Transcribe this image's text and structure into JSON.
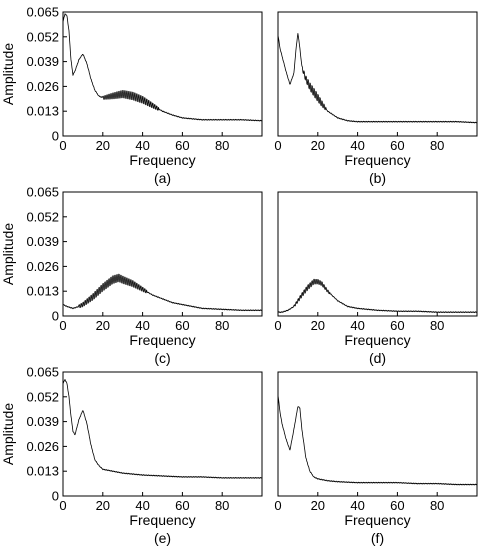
{
  "chart_data": [
    {
      "type": "line",
      "label": "(a)",
      "xlabel": "Frequency",
      "ylabel": "Amplitude",
      "xlim": [
        0,
        100
      ],
      "ylim": [
        0,
        0.065
      ],
      "xticks": [
        0,
        20,
        40,
        60,
        80
      ],
      "yticks": [
        0,
        0.013,
        0.026,
        0.039,
        0.052,
        0.065
      ],
      "xtick_labels": [
        "0",
        "20",
        "40",
        "60",
        "80"
      ],
      "ytick_labels": [
        "0",
        "0.013",
        "0.026",
        "0.039",
        "0.052",
        "0.065"
      ],
      "grid": false,
      "series": [
        {
          "x": [
            0,
            1,
            2,
            3,
            4,
            5,
            6,
            8,
            10,
            12,
            14,
            16,
            18,
            20,
            25,
            30,
            35,
            40,
            45,
            50,
            55,
            60,
            65,
            70,
            80,
            90,
            100
          ],
          "y": [
            0.06,
            0.064,
            0.063,
            0.055,
            0.04,
            0.032,
            0.034,
            0.04,
            0.043,
            0.038,
            0.03,
            0.024,
            0.021,
            0.02,
            0.021,
            0.022,
            0.021,
            0.019,
            0.016,
            0.013,
            0.011,
            0.0095,
            0.009,
            0.0085,
            0.0085,
            0.0085,
            0.008
          ],
          "oscillation": {
            "from": 20,
            "to": 48,
            "amplitude": 0.004
          }
        }
      ]
    },
    {
      "type": "line",
      "label": "(b)",
      "xlabel": "Frequency",
      "ylabel": "",
      "xlim": [
        0,
        100
      ],
      "ylim": [
        0,
        0.065
      ],
      "xticks": [
        0,
        20,
        40,
        60,
        80
      ],
      "yticks": [],
      "xtick_labels": [
        "0",
        "20",
        "40",
        "60",
        "80"
      ],
      "ytick_labels": [],
      "grid": false,
      "series": [
        {
          "x": [
            0,
            1,
            2,
            4,
            6,
            8,
            9,
            10,
            11,
            12,
            14,
            16,
            18,
            20,
            22,
            25,
            30,
            35,
            40,
            50,
            60,
            70,
            80,
            90,
            100
          ],
          "y": [
            0.053,
            0.046,
            0.042,
            0.034,
            0.027,
            0.033,
            0.045,
            0.054,
            0.046,
            0.036,
            0.03,
            0.026,
            0.023,
            0.02,
            0.017,
            0.013,
            0.0095,
            0.008,
            0.0075,
            0.0075,
            0.0075,
            0.0075,
            0.0075,
            0.0075,
            0.007
          ],
          "oscillation": {
            "from": 12,
            "to": 24,
            "amplitude": 0.004
          }
        }
      ]
    },
    {
      "type": "line",
      "label": "(c)",
      "xlabel": "Frequency",
      "ylabel": "Amplitude",
      "xlim": [
        0,
        100
      ],
      "ylim": [
        0,
        0.065
      ],
      "xticks": [
        0,
        20,
        40,
        60,
        80
      ],
      "yticks": [
        0,
        0.013,
        0.026,
        0.039,
        0.052,
        0.065
      ],
      "xtick_labels": [
        "0",
        "20",
        "40",
        "60",
        "80"
      ],
      "ytick_labels": [
        "0",
        "0.013",
        "0.026",
        "0.039",
        "0.052",
        "0.065"
      ],
      "grid": false,
      "series": [
        {
          "x": [
            0,
            2,
            5,
            8,
            10,
            15,
            20,
            25,
            28,
            30,
            35,
            40,
            45,
            50,
            55,
            60,
            65,
            70,
            80,
            90,
            100
          ],
          "y": [
            0.006,
            0.005,
            0.004,
            0.005,
            0.006,
            0.01,
            0.015,
            0.019,
            0.02,
            0.019,
            0.017,
            0.014,
            0.011,
            0.009,
            0.007,
            0.006,
            0.005,
            0.004,
            0.0035,
            0.003,
            0.003
          ],
          "oscillation": {
            "from": 8,
            "to": 42,
            "amplitude": 0.004
          }
        }
      ]
    },
    {
      "type": "line",
      "label": "(d)",
      "xlabel": "Frequency",
      "ylabel": "",
      "xlim": [
        0,
        100
      ],
      "ylim": [
        0,
        0.065
      ],
      "xticks": [
        0,
        20,
        40,
        60,
        80
      ],
      "yticks": [],
      "xtick_labels": [
        "0",
        "20",
        "40",
        "60",
        "80"
      ],
      "ytick_labels": [],
      "grid": false,
      "series": [
        {
          "x": [
            0,
            2,
            5,
            8,
            10,
            12,
            15,
            18,
            20,
            22,
            25,
            28,
            30,
            35,
            40,
            50,
            60,
            70,
            80,
            90,
            100
          ],
          "y": [
            0.002,
            0.002,
            0.003,
            0.005,
            0.008,
            0.011,
            0.015,
            0.018,
            0.018,
            0.017,
            0.013,
            0.01,
            0.008,
            0.005,
            0.004,
            0.003,
            0.0025,
            0.0025,
            0.002,
            0.002,
            0.002
          ],
          "oscillation": {
            "from": 8,
            "to": 26,
            "amplitude": 0.0025
          }
        }
      ]
    },
    {
      "type": "line",
      "label": "(e)",
      "xlabel": "Frequency",
      "ylabel": "Amplitude",
      "xlim": [
        0,
        100
      ],
      "ylim": [
        0,
        0.065
      ],
      "xticks": [
        0,
        20,
        40,
        60,
        80
      ],
      "yticks": [
        0,
        0.013,
        0.026,
        0.039,
        0.052,
        0.065
      ],
      "xtick_labels": [
        "0",
        "20",
        "40",
        "60",
        "80"
      ],
      "ytick_labels": [
        "0",
        "0.013",
        "0.026",
        "0.039",
        "0.052",
        "0.065"
      ],
      "grid": false,
      "series": [
        {
          "x": [
            0,
            1,
            2,
            3,
            4,
            5,
            6,
            8,
            10,
            12,
            14,
            16,
            18,
            20,
            25,
            30,
            40,
            50,
            60,
            70,
            80,
            90,
            100
          ],
          "y": [
            0.059,
            0.061,
            0.059,
            0.052,
            0.042,
            0.034,
            0.032,
            0.04,
            0.045,
            0.038,
            0.027,
            0.019,
            0.016,
            0.014,
            0.013,
            0.012,
            0.011,
            0.0105,
            0.01,
            0.01,
            0.0095,
            0.0095,
            0.0095
          ],
          "oscillation": null
        }
      ]
    },
    {
      "type": "line",
      "label": "(f)",
      "xlabel": "Frequency",
      "ylabel": "",
      "xlim": [
        0,
        100
      ],
      "ylim": [
        0,
        0.065
      ],
      "xticks": [
        0,
        20,
        40,
        60,
        80
      ],
      "yticks": [],
      "xtick_labels": [
        "0",
        "20",
        "40",
        "60",
        "80"
      ],
      "ytick_labels": [],
      "grid": false,
      "series": [
        {
          "x": [
            0,
            1,
            2,
            4,
            6,
            8,
            10,
            11,
            12,
            14,
            16,
            18,
            20,
            25,
            30,
            40,
            50,
            60,
            70,
            80,
            90,
            100
          ],
          "y": [
            0.053,
            0.044,
            0.038,
            0.03,
            0.024,
            0.035,
            0.047,
            0.046,
            0.035,
            0.02,
            0.013,
            0.01,
            0.009,
            0.008,
            0.0075,
            0.007,
            0.007,
            0.007,
            0.0065,
            0.0065,
            0.006,
            0.006
          ],
          "oscillation": null
        }
      ]
    }
  ]
}
